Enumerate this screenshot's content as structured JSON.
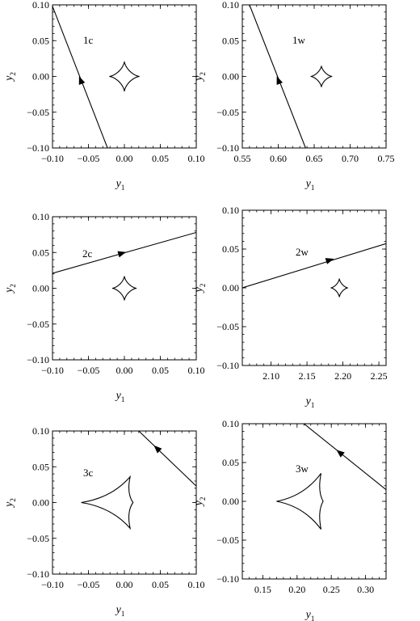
{
  "chart_data": [
    {
      "type": "line",
      "panel_label": "1c",
      "xlabel": "y1",
      "ylabel": "y2",
      "xlim": [
        -0.1,
        0.1
      ],
      "ylim": [
        -0.1,
        0.1
      ],
      "xticks": [
        "−0.10",
        "−0.05",
        "0.00",
        "0.05",
        "0.10"
      ],
      "yticks": [
        "0.10",
        "0.05",
        "0.00",
        "−0.05",
        "−0.10"
      ],
      "track": {
        "x": [
          -0.1,
          -0.0235
        ],
        "y": [
          0.098,
          -0.1
        ]
      },
      "arrow": {
        "x": -0.061,
        "y": -0.005,
        "direction": "up"
      },
      "caustic": {
        "center": [
          0.0,
          0.0
        ],
        "half_width": 0.021,
        "half_height": 0.021
      }
    },
    {
      "type": "line",
      "panel_label": "1w",
      "xlabel": "y1",
      "ylabel": "y2",
      "xlim": [
        0.55,
        0.75
      ],
      "ylim": [
        -0.1,
        0.1
      ],
      "xticks": [
        "0.55",
        "0.60",
        "0.65",
        "0.70",
        "0.75"
      ],
      "yticks": [
        "0.10",
        "0.05",
        "0.00",
        "−0.05",
        "−0.10"
      ],
      "track": {
        "x": [
          0.56,
          0.638
        ],
        "y": [
          0.1,
          -0.1
        ]
      },
      "arrow": {
        "x": 0.6,
        "y": -0.005,
        "direction": "up"
      },
      "caustic": {
        "center": [
          0.66,
          0.0
        ],
        "half_width": 0.015,
        "half_height": 0.015
      }
    },
    {
      "type": "line",
      "panel_label": "2c",
      "xlabel": "y1",
      "ylabel": "y2",
      "xlim": [
        -0.1,
        0.1
      ],
      "ylim": [
        -0.1,
        0.1
      ],
      "xticks": [
        "−0.10",
        "−0.05",
        "0.00",
        "0.05",
        "0.10"
      ],
      "yticks": [
        "0.10",
        "0.05",
        "0.00",
        "−0.05",
        "−0.10"
      ],
      "track": {
        "x": [
          -0.1,
          0.1
        ],
        "y": [
          0.021,
          0.078
        ]
      },
      "arrow": {
        "x": -0.003,
        "y": 0.049,
        "direction": "right"
      },
      "caustic": {
        "center": [
          0.0,
          0.0
        ],
        "half_width": 0.017,
        "half_height": 0.017
      }
    },
    {
      "type": "line",
      "panel_label": "2w",
      "xlabel": "y1",
      "ylabel": "y2",
      "xlim": [
        2.06,
        2.26
      ],
      "ylim": [
        -0.1,
        0.1
      ],
      "xticks": [
        "2.10",
        "2.15",
        "2.20",
        "2.25"
      ],
      "xtick_values": [
        2.1,
        2.15,
        2.2,
        2.25
      ],
      "yticks": [
        "0.10",
        "0.05",
        "0.00",
        "−0.05",
        "−0.10"
      ],
      "track": {
        "x": [
          2.06,
          2.26
        ],
        "y": [
          0.0,
          0.057
        ]
      },
      "arrow": {
        "x": 2.182,
        "y": 0.036,
        "direction": "right"
      },
      "caustic": {
        "center": [
          2.195,
          0.0
        ],
        "half_width": 0.012,
        "half_height": 0.012
      }
    },
    {
      "type": "line",
      "panel_label": "3c",
      "xlabel": "y1",
      "ylabel": "y2",
      "xlim": [
        -0.1,
        0.1
      ],
      "ylim": [
        -0.1,
        0.1
      ],
      "xticks": [
        "−0.10",
        "−0.05",
        "0.00",
        "0.05",
        "0.10"
      ],
      "yticks": [
        "0.10",
        "0.05",
        "0.00",
        "−0.05",
        "−0.10"
      ],
      "track": {
        "x": [
          0.02,
          0.1
        ],
        "y": [
          0.1,
          0.023
        ]
      },
      "arrow": {
        "x": 0.045,
        "y": 0.076,
        "direction": "up-left"
      },
      "caustic_asym": {
        "left": [
          -0.06,
          0.0
        ],
        "top": [
          0.008,
          0.036
        ],
        "bottom": [
          0.008,
          -0.036
        ],
        "right": [
          0.012,
          0.0
        ]
      }
    },
    {
      "type": "line",
      "panel_label": "3w",
      "xlabel": "y1",
      "ylabel": "y2",
      "xlim": [
        0.12,
        0.33
      ],
      "ylim": [
        -0.1,
        0.1
      ],
      "xticks": [
        "0.15",
        "0.20",
        "0.25",
        "0.30"
      ],
      "xtick_values": [
        0.15,
        0.2,
        0.25,
        0.3
      ],
      "yticks": [
        "0.10",
        "0.05",
        "0.00",
        "−0.05",
        "−0.10"
      ],
      "track": {
        "x": [
          0.21,
          0.33
        ],
        "y": [
          0.1,
          0.015
        ]
      },
      "arrow": {
        "x": 0.262,
        "y": 0.063,
        "direction": "up-left"
      },
      "caustic_asym": {
        "left": [
          0.17,
          0.0
        ],
        "top": [
          0.235,
          0.036
        ],
        "bottom": [
          0.235,
          -0.036
        ],
        "right": [
          0.238,
          0.0
        ]
      }
    }
  ]
}
